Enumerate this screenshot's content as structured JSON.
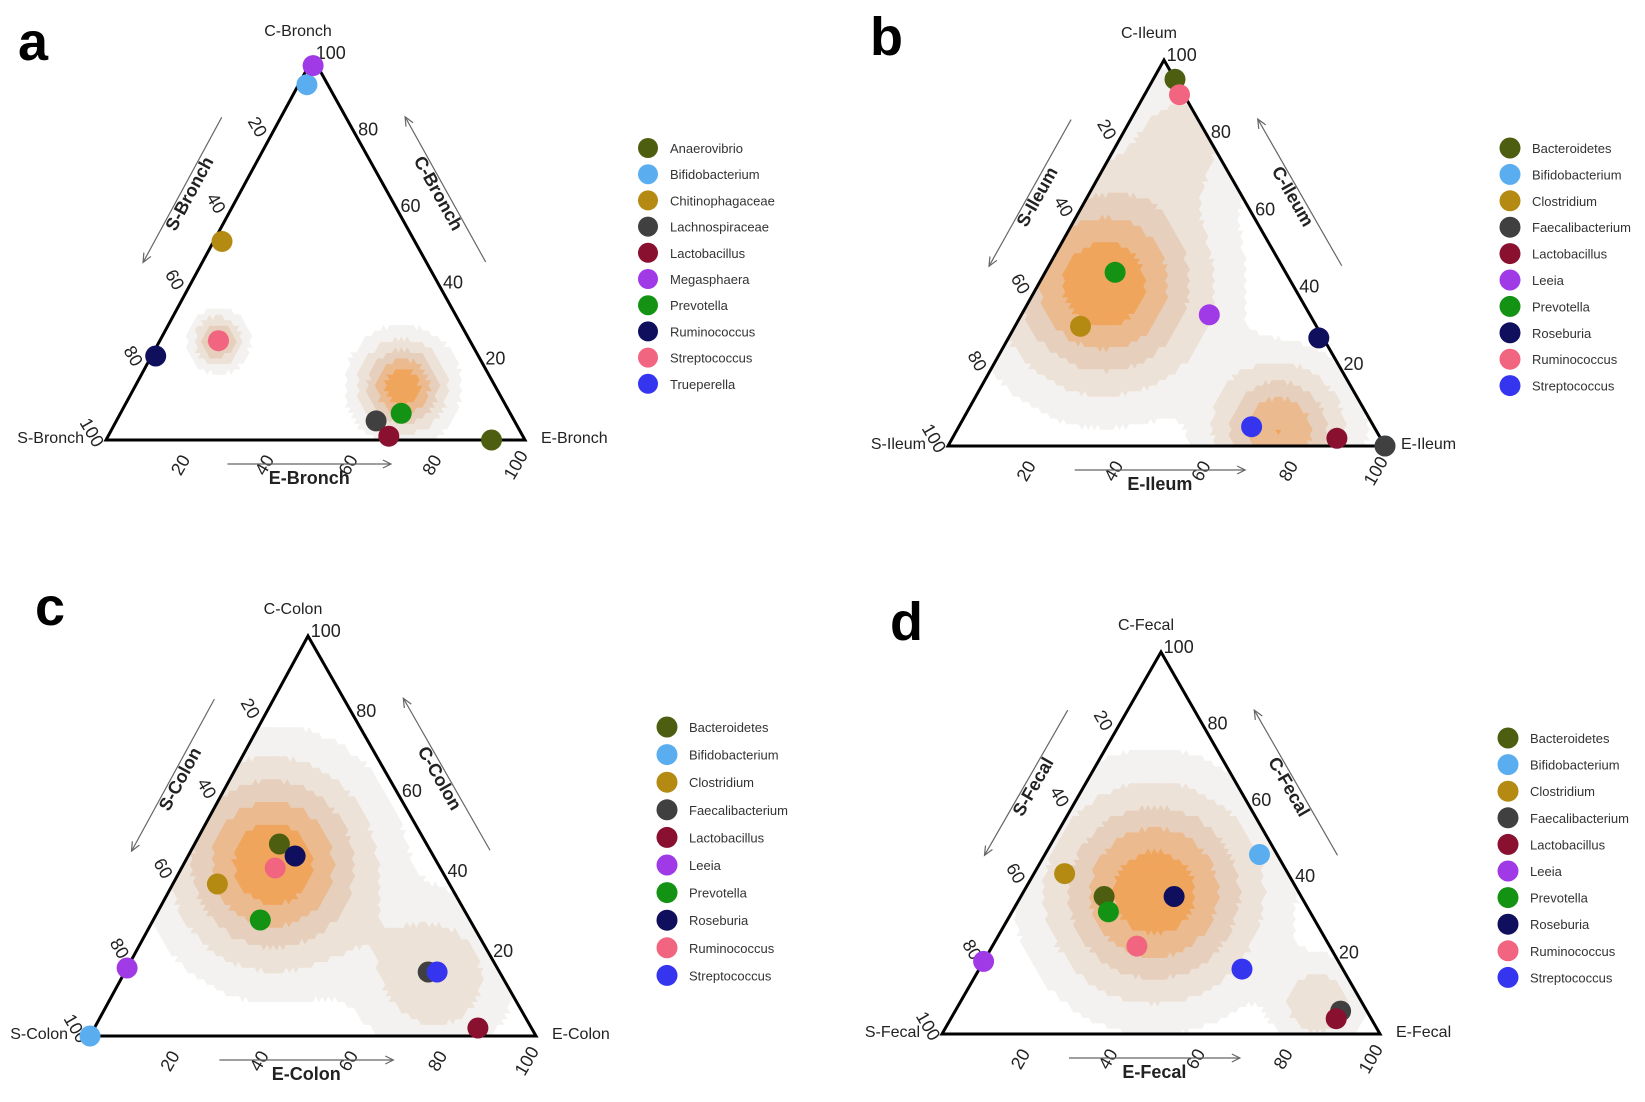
{
  "figure": {
    "colors": {
      "density": [
        "#f4f2f0",
        "#ede2d8",
        "#e6d0bd",
        "#ebba8f",
        "#f0a55c"
      ],
      "axis": "#000000",
      "arrow": "#666666"
    }
  },
  "chart_data": [
    {
      "type": "scatter",
      "subtype": "ternary",
      "panel": "a",
      "title": "a",
      "vertices": {
        "top": "C-Bronch",
        "left": "S-Bronch",
        "right": "E-Bronch"
      },
      "axis_titles": {
        "bottom": "E-Bronch",
        "left": "S-Bronch",
        "right": "C-Bronch"
      },
      "ticks": [
        "20",
        "40",
        "60",
        "80",
        "100"
      ],
      "axis_range": [
        0,
        100
      ],
      "density_peaks": [
        {
          "C": 14,
          "E": 64,
          "sigma": 6,
          "weight": 1.0
        },
        {
          "C": 26,
          "E": 14,
          "sigma": 3.5,
          "weight": 0.7
        }
      ],
      "series": [
        {
          "name": "Anaerovibrio",
          "color": "#4d5e10",
          "C": 0,
          "E": 92
        },
        {
          "name": "Bifidobacterium",
          "color": "#5aaef0",
          "C": 93,
          "E": 2
        },
        {
          "name": "Chitinophagaceae",
          "color": "#b58a12",
          "C": 52,
          "E": 2
        },
        {
          "name": "Lachnospiraceae",
          "color": "#404040",
          "C": 5,
          "E": 62
        },
        {
          "name": "Lactobacillus",
          "color": "#8a1030",
          "C": 1,
          "E": 67
        },
        {
          "name": "Megasphaera",
          "color": "#a03ae6",
          "C": 98,
          "E": 1
        },
        {
          "name": "Prevotella",
          "color": "#139213",
          "C": 7,
          "E": 67
        },
        {
          "name": "Ruminococcus",
          "color": "#0f0f5e",
          "C": 22,
          "E": 1
        },
        {
          "name": "Streptococcus",
          "color": "#f26580",
          "C": 26,
          "E": 14
        },
        {
          "name": "Trueperella",
          "color": "#3535f0",
          "C": null,
          "E": null
        }
      ]
    },
    {
      "type": "scatter",
      "subtype": "ternary",
      "panel": "b",
      "title": "b",
      "vertices": {
        "top": "C-Ileum",
        "left": "S-Ileum",
        "right": "E-Ileum"
      },
      "axis_titles": {
        "bottom": "E-Ileum",
        "left": "S-Ileum",
        "right": "C-Ileum"
      },
      "ticks": [
        "20",
        "40",
        "60",
        "80",
        "100"
      ],
      "axis_range": [
        0,
        100
      ],
      "density_peaks": [
        {
          "C": 42,
          "E": 15,
          "sigma": 14,
          "weight": 1.0
        },
        {
          "C": 4,
          "E": 74,
          "sigma": 9,
          "weight": 0.8
        },
        {
          "C": 80,
          "E": 14,
          "sigma": 10,
          "weight": 0.25
        }
      ],
      "series": [
        {
          "name": "Bacteroidetes",
          "color": "#4d5e10",
          "C": 95,
          "E": 5
        },
        {
          "name": "Bifidobacterium",
          "color": "#5aaef0",
          "C": 0,
          "E": 100
        },
        {
          "name": "Clostridium",
          "color": "#b58a12",
          "C": 31,
          "E": 15
        },
        {
          "name": "Faecalibacterium",
          "color": "#404040",
          "C": 0,
          "E": 100
        },
        {
          "name": "Lactobacillus",
          "color": "#8a1030",
          "C": 2,
          "E": 88
        },
        {
          "name": "Leeia",
          "color": "#a03ae6",
          "C": 34,
          "E": 43
        },
        {
          "name": "Prevotella",
          "color": "#139213",
          "C": 45,
          "E": 16
        },
        {
          "name": "Roseburia",
          "color": "#0f0f5e",
          "C": 28,
          "E": 71
        },
        {
          "name": "Ruminococcus",
          "color": "#f26580",
          "C": 91,
          "E": 8
        },
        {
          "name": "Streptococcus",
          "color": "#3535f0",
          "C": 5,
          "E": 67
        }
      ]
    },
    {
      "type": "scatter",
      "subtype": "ternary",
      "panel": "c",
      "title": "c",
      "vertices": {
        "top": "C-Colon",
        "left": "S-Colon",
        "right": "E-Colon"
      },
      "axis_titles": {
        "bottom": "E-Colon",
        "left": "S-Colon",
        "right": "C-Colon"
      },
      "ticks": [
        "20",
        "40",
        "60",
        "80",
        "100"
      ],
      "axis_range": [
        0,
        100
      ],
      "density_peaks": [
        {
          "C": 43,
          "E": 20,
          "sigma": 13,
          "weight": 1.0
        },
        {
          "C": 15,
          "E": 70,
          "sigma": 10,
          "weight": 0.35
        }
      ],
      "series": [
        {
          "name": "Bacteroidetes",
          "color": "#4d5e10",
          "C": 48,
          "E": 19
        },
        {
          "name": "Bifidobacterium",
          "color": "#5aaef0",
          "C": 0,
          "E": 0
        },
        {
          "name": "Clostridium",
          "color": "#b58a12",
          "C": 38,
          "E": 10
        },
        {
          "name": "Faecalibacterium",
          "color": "#404040",
          "C": 16,
          "E": 68
        },
        {
          "name": "Lactobacillus",
          "color": "#8a1030",
          "C": 2,
          "E": 86
        },
        {
          "name": "Leeia",
          "color": "#a03ae6",
          "C": 17,
          "E": 0
        },
        {
          "name": "Prevotella",
          "color": "#139213",
          "C": 29,
          "E": 24
        },
        {
          "name": "Roseburia",
          "color": "#0f0f5e",
          "C": 45,
          "E": 24
        },
        {
          "name": "Ruminococcus",
          "color": "#f26580",
          "C": 42,
          "E": 21
        },
        {
          "name": "Streptococcus",
          "color": "#3535f0",
          "C": 16,
          "E": 70
        }
      ]
    },
    {
      "type": "scatter",
      "subtype": "ternary",
      "panel": "d",
      "title": "d",
      "vertices": {
        "top": "C-Fecal",
        "left": "S-Fecal",
        "right": "E-Fecal"
      },
      "axis_titles": {
        "bottom": "E-Fecal",
        "left": "S-Fecal",
        "right": "C-Fecal"
      },
      "ticks": [
        "20",
        "40",
        "60",
        "80",
        "100"
      ],
      "axis_range": [
        0,
        100
      ],
      "density_peaks": [
        {
          "C": 37,
          "E": 30,
          "sigma": 14,
          "weight": 1.0
        },
        {
          "C": 8,
          "E": 82,
          "sigma": 6,
          "weight": 0.35
        }
      ],
      "series": [
        {
          "name": "Bacteroidetes",
          "color": "#4d5e10",
          "C": 36,
          "E": 19
        },
        {
          "name": "Bifidobacterium",
          "color": "#5aaef0",
          "C": 47,
          "E": 49
        },
        {
          "name": "Clostridium",
          "color": "#b58a12",
          "C": 42,
          "E": 7
        },
        {
          "name": "Faecalibacterium",
          "color": "#404040",
          "C": 6,
          "E": 88
        },
        {
          "name": "Lactobacillus",
          "color": "#8a1030",
          "C": 4,
          "E": 88
        },
        {
          "name": "Leeia",
          "color": "#a03ae6",
          "C": 19,
          "E": 0
        },
        {
          "name": "Prevotella",
          "color": "#139213",
          "C": 32,
          "E": 22
        },
        {
          "name": "Roseburia",
          "color": "#0f0f5e",
          "C": 36,
          "E": 35
        },
        {
          "name": "Ruminococcus",
          "color": "#f26580",
          "C": 23,
          "E": 33
        },
        {
          "name": "Streptococcus",
          "color": "#3535f0",
          "C": 17,
          "E": 60
        }
      ]
    }
  ]
}
